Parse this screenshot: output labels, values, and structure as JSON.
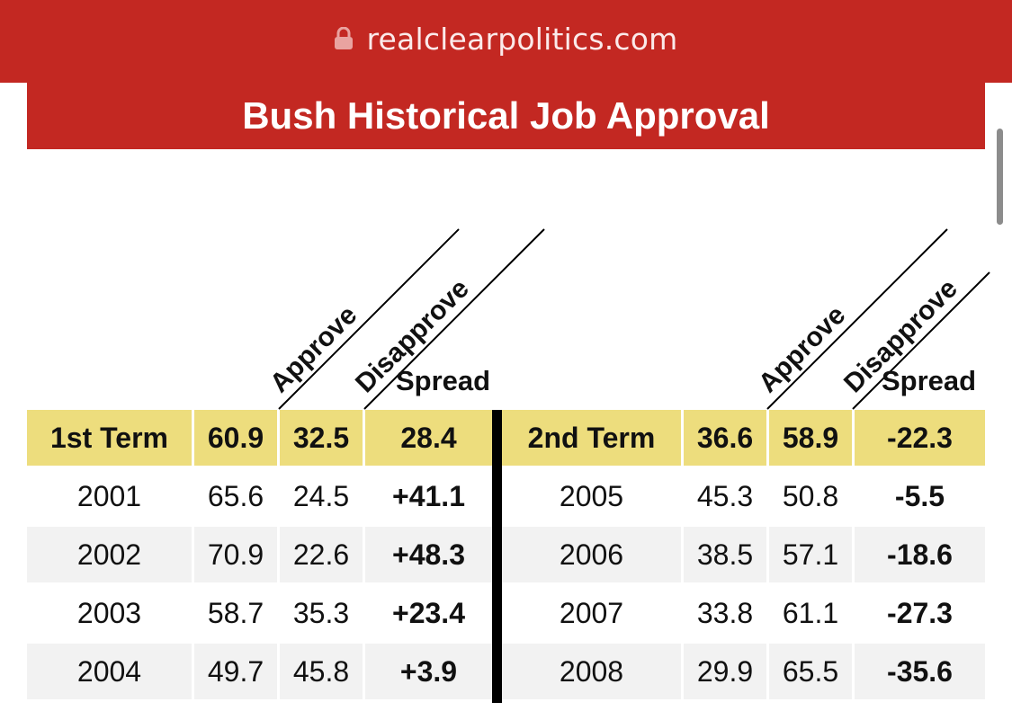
{
  "browser": {
    "url": "realclearpolitics.com",
    "lock_icon": "lock-icon",
    "bar_color": "#c32822"
  },
  "page": {
    "title": "Bush Historical Job Approval",
    "colors": {
      "brand_red": "#c32822",
      "term_highlight": "#eddd7d",
      "alt_row": "#f2f2f2"
    }
  },
  "table": {
    "headers": {
      "left": {
        "approve": "Approve",
        "disapprove": "Disapprove",
        "spread": "Spread"
      },
      "right": {
        "approve": "Approve",
        "disapprove": "Disapprove",
        "spread": "Spread"
      }
    },
    "terms": [
      {
        "label": "1st Term",
        "approve": "60.9",
        "disapprove": "32.5",
        "spread": "28.4"
      },
      {
        "label": "2nd Term",
        "approve": "36.6",
        "disapprove": "58.9",
        "spread": "-22.3"
      }
    ],
    "left_rows": [
      {
        "year": "2001",
        "approve": "65.6",
        "disapprove": "24.5",
        "spread": "+41.1"
      },
      {
        "year": "2002",
        "approve": "70.9",
        "disapprove": "22.6",
        "spread": "+48.3"
      },
      {
        "year": "2003",
        "approve": "58.7",
        "disapprove": "35.3",
        "spread": "+23.4"
      },
      {
        "year": "2004",
        "approve": "49.7",
        "disapprove": "45.8",
        "spread": "+3.9"
      }
    ],
    "right_rows": [
      {
        "year": "2005",
        "approve": "45.3",
        "disapprove": "50.8",
        "spread": "-5.5"
      },
      {
        "year": "2006",
        "approve": "38.5",
        "disapprove": "57.1",
        "spread": "-18.6"
      },
      {
        "year": "2007",
        "approve": "33.8",
        "disapprove": "61.1",
        "spread": "-27.3"
      },
      {
        "year": "2008",
        "approve": "29.9",
        "disapprove": "65.5",
        "spread": "-35.6"
      }
    ]
  }
}
